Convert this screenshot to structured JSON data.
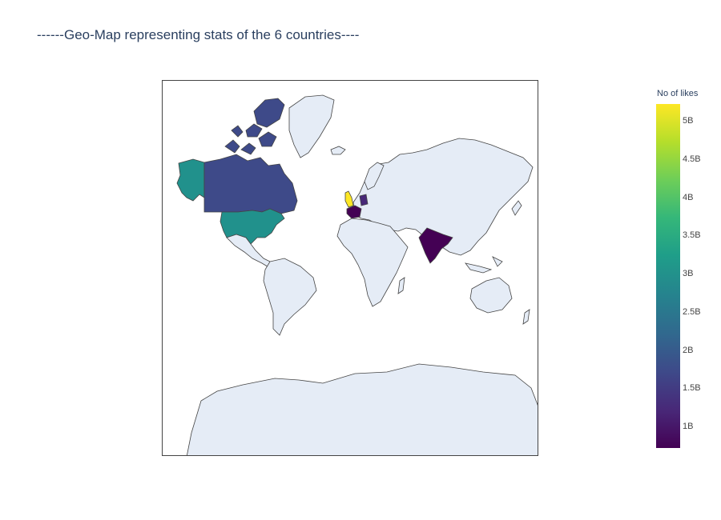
{
  "title": "------Geo-Map representing stats of the 6 countries----",
  "map": {
    "projection": "mercator",
    "land_color": "#e5ecf6",
    "border_color": "#444444",
    "ocean_color": "#ffffff"
  },
  "countries": [
    {
      "name": "United States",
      "value": 3.3,
      "color": "#21918c"
    },
    {
      "name": "Canada",
      "value": 1.6,
      "color": "#3e4a89"
    },
    {
      "name": "Greenland",
      "value": null,
      "color": "#e5ecf6"
    },
    {
      "name": "United Kingdom",
      "value": 5.2,
      "color": "#fde725"
    },
    {
      "name": "France",
      "value": 0.9,
      "color": "#440154"
    },
    {
      "name": "Germany",
      "value": 1.5,
      "color": "#482878"
    },
    {
      "name": "India",
      "value": 0.8,
      "color": "#440154"
    }
  ],
  "colorbar": {
    "title": "No of likes",
    "min": 0.72,
    "max": 5.22,
    "ticks": [
      "1B",
      "1.5B",
      "2B",
      "2.5B",
      "3B",
      "3.5B",
      "4B",
      "4.5B",
      "5B"
    ],
    "tick_values": [
      1,
      1.5,
      2,
      2.5,
      3,
      3.5,
      4,
      4.5,
      5
    ],
    "colorscale": "viridis"
  }
}
